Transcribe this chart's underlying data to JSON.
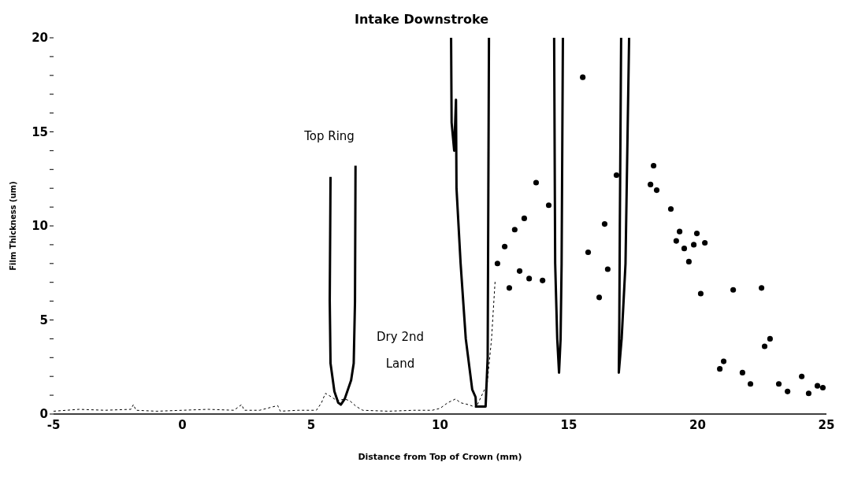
{
  "chart_data": {
    "type": "line",
    "title": "Intake Downstroke",
    "xlabel": "Distance from Top of Crown (mm)",
    "ylabel": "Film Thickness (um)",
    "xlim": [
      -5,
      25
    ],
    "xticks": [
      -5,
      0,
      5,
      10,
      15,
      20,
      25
    ],
    "ylim": [
      0,
      20
    ],
    "yticks": [
      0,
      {
        "value": 1,
        "label": null
      },
      {
        "value": 2,
        "label": null
      },
      {
        "value": 3,
        "label": null
      },
      {
        "value": 4,
        "label": null
      },
      5,
      {
        "value": 6,
        "label": null
      },
      {
        "value": 7,
        "label": null
      },
      {
        "value": 8,
        "label": null
      },
      {
        "value": 9,
        "label": null
      },
      10,
      {
        "value": 11,
        "label": null
      },
      {
        "value": 12,
        "label": null
      },
      {
        "value": 13,
        "label": null
      },
      {
        "value": 14,
        "label": null
      },
      15,
      {
        "value": 16,
        "label": null
      },
      {
        "value": 17,
        "label": null
      },
      {
        "value": 18,
        "label": null
      },
      {
        "value": 19,
        "label": null
      },
      20
    ],
    "grid": false,
    "annotations": [
      "Top Ring",
      "Dry 2nd Land"
    ],
    "series": [
      {
        "color": "#000000",
        "line_style": "solid",
        "x": [
          5.75,
          5.72,
          5.75,
          5.9,
          6.05,
          6.15,
          6.3,
          6.55,
          6.65,
          6.7,
          6.72
        ],
        "values": [
          12.6,
          6,
          2.7,
          1.2,
          0.6,
          0.5,
          0.8,
          1.8,
          2.7,
          6,
          13.2
        ]
      },
      {
        "color": "#000000",
        "line_style": "solid",
        "x": [
          10.43,
          10.45,
          10.55,
          10.62,
          10.64,
          10.8,
          11.0,
          11.25,
          11.38,
          11.4,
          11.77,
          11.85,
          11.9
        ],
        "values": [
          20,
          15.5,
          14,
          16.7,
          12,
          8,
          4,
          1.3,
          0.9,
          0.4,
          0.4,
          3,
          20
        ]
      },
      {
        "color": "#000000",
        "line_style": "solid",
        "x": [
          14.43,
          14.47,
          14.55,
          14.62,
          14.68,
          14.72,
          14.77
        ],
        "values": [
          20,
          8,
          4,
          2.2,
          4,
          8,
          20
        ]
      },
      {
        "color": "#000000",
        "line_style": "solid",
        "x": [
          17.03,
          16.98,
          16.96,
          16.94,
          17.05,
          17.2,
          17.34
        ],
        "values": [
          20,
          10,
          5,
          2.2,
          4,
          8,
          20
        ]
      },
      {
        "color": "#000000",
        "line_style": "dashed",
        "x": [
          -5,
          -4,
          -3,
          -2,
          -1.9,
          -1.8,
          -1,
          0,
          1,
          2,
          2.3,
          2.4,
          3,
          3.7,
          3.8,
          4.5,
          5.2,
          5.4,
          5.55,
          5.8,
          6.0,
          6.3,
          6.5,
          6.75,
          7.0,
          8,
          9,
          9.7,
          10,
          10.3,
          10.6,
          10.8,
          11.1,
          11.4,
          11.83,
          12.0,
          12.14
        ],
        "values": [
          0.15,
          0.25,
          0.2,
          0.25,
          0.5,
          0.2,
          0.15,
          0.2,
          0.25,
          0.2,
          0.5,
          0.2,
          0.2,
          0.45,
          0.15,
          0.2,
          0.2,
          0.6,
          1.1,
          0.9,
          0.7,
          0.8,
          0.7,
          0.4,
          0.2,
          0.15,
          0.2,
          0.2,
          0.3,
          0.6,
          0.8,
          0.6,
          0.5,
          0.35,
          1.6,
          4,
          7.1
        ]
      },
      {
        "type": "scatter",
        "color": "#000000",
        "x": [
          12.23,
          12.51,
          12.69,
          12.9,
          13.09,
          13.27,
          13.46,
          13.73,
          13.98,
          14.22,
          15.75,
          16.18,
          16.39,
          16.51,
          16.85,
          15.54,
          18.29,
          18.17,
          18.41,
          18.96,
          19.17,
          19.3,
          19.48,
          19.66,
          19.85,
          19.97,
          20.28,
          20.12,
          21.38,
          22.48,
          22.6,
          22.81,
          21.01,
          20.86,
          21.74,
          22.05,
          23.15,
          23.49,
          24.04,
          24.31,
          24.65,
          24.86
        ],
        "values": [
          8.0,
          8.9,
          6.7,
          9.8,
          7.6,
          10.4,
          7.2,
          12.3,
          7.1,
          11.1,
          8.6,
          6.2,
          10.1,
          7.7,
          12.7,
          17.9,
          13.2,
          12.2,
          11.9,
          10.9,
          9.2,
          9.7,
          8.8,
          8.1,
          9.0,
          9.6,
          9.1,
          6.4,
          6.6,
          6.7,
          3.6,
          4.0,
          2.8,
          2.4,
          2.2,
          1.6,
          1.6,
          1.2,
          2.0,
          1.1,
          1.5,
          1.4
        ]
      }
    ]
  }
}
